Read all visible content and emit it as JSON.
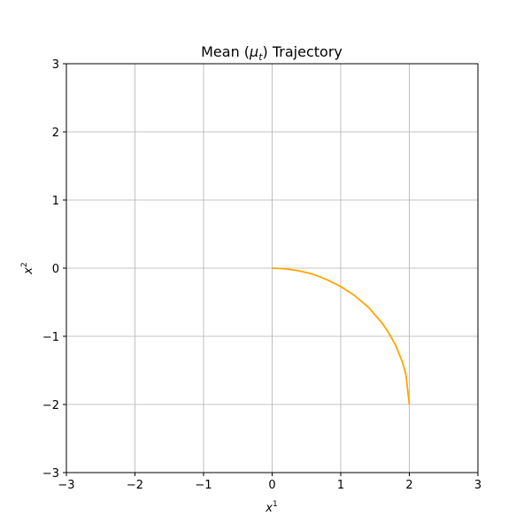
{
  "chart_data": {
    "type": "line",
    "title": "Mean (μt) Trajectory",
    "xlabel_base": "x",
    "xlabel_sup": "1",
    "ylabel_base": "x",
    "ylabel_sup": "2",
    "xlim": [
      -3,
      3
    ],
    "ylim": [
      -3,
      3
    ],
    "xticks": [
      -3,
      -2,
      -1,
      0,
      1,
      2,
      3
    ],
    "yticks": [
      -3,
      -2,
      -1,
      0,
      1,
      2,
      3
    ],
    "xtick_labels": [
      "−3",
      "−2",
      "−1",
      "0",
      "1",
      "2",
      "3"
    ],
    "ytick_labels": [
      "−3",
      "−2",
      "−1",
      "0",
      "1",
      "2",
      "3"
    ],
    "grid": true,
    "series": [
      {
        "color": "#ffa500",
        "x": [
          0,
          0.2,
          0.4,
          0.6,
          0.8,
          1.0,
          1.2,
          1.4,
          1.6,
          1.7,
          1.8,
          1.9,
          1.95,
          2.0
        ],
        "y": [
          0,
          -0.01,
          -0.04,
          -0.09,
          -0.17,
          -0.27,
          -0.4,
          -0.57,
          -0.8,
          -0.95,
          -1.13,
          -1.38,
          -1.56,
          -2.0
        ]
      }
    ]
  }
}
